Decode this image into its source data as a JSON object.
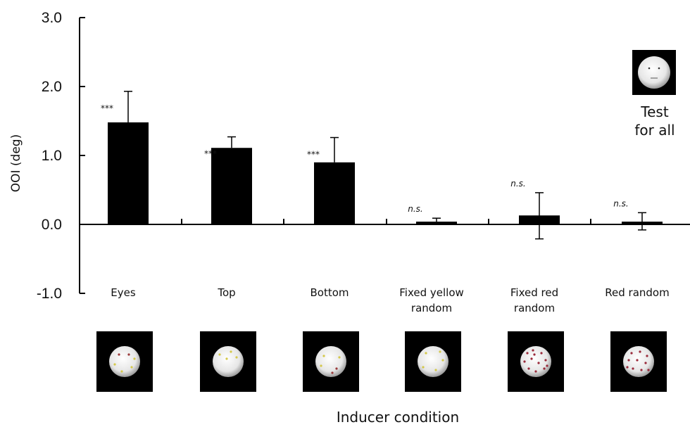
{
  "chart_data": {
    "type": "bar",
    "categories": [
      "Eyes",
      "Top",
      "Bottom",
      "Fixed yellow\nrandom",
      "Fixed red\nrandom",
      "Red random"
    ],
    "values": [
      1.48,
      1.11,
      0.9,
      0.04,
      0.13,
      0.04
    ],
    "error_upper": [
      1.93,
      1.27,
      1.26,
      0.09,
      0.46,
      0.17
    ],
    "error_lower": [
      1.48,
      1.11,
      0.9,
      0.04,
      -0.21,
      -0.08
    ],
    "significance": [
      "***",
      "***",
      "***",
      "n.s.",
      "n.s.",
      "n.s."
    ],
    "ylabel": "OOI (deg)",
    "xlabel": "Inducer condition",
    "ylim": [
      -1.0,
      3.0
    ],
    "yticks": [
      "3.0",
      "2.0",
      "1.0",
      "0.0",
      "-1.0"
    ],
    "ytick_values": [
      3.0,
      2.0,
      1.0,
      0.0,
      -1.0
    ],
    "inset_label": "Test\nfor all",
    "bar_color": "#000000",
    "dot_colors": {
      "eyes": [
        "#9a3a3a",
        "#d4c84a"
      ],
      "top": [
        "#d4c84a"
      ],
      "bottom": [
        "#d4c84a",
        "#9a3a3a"
      ],
      "fixed_yellow_random": [
        "#d4c84a"
      ],
      "fixed_red_random": [
        "#9a2a3a"
      ],
      "red_random": [
        "#9a2a3a"
      ]
    },
    "grid": false
  }
}
